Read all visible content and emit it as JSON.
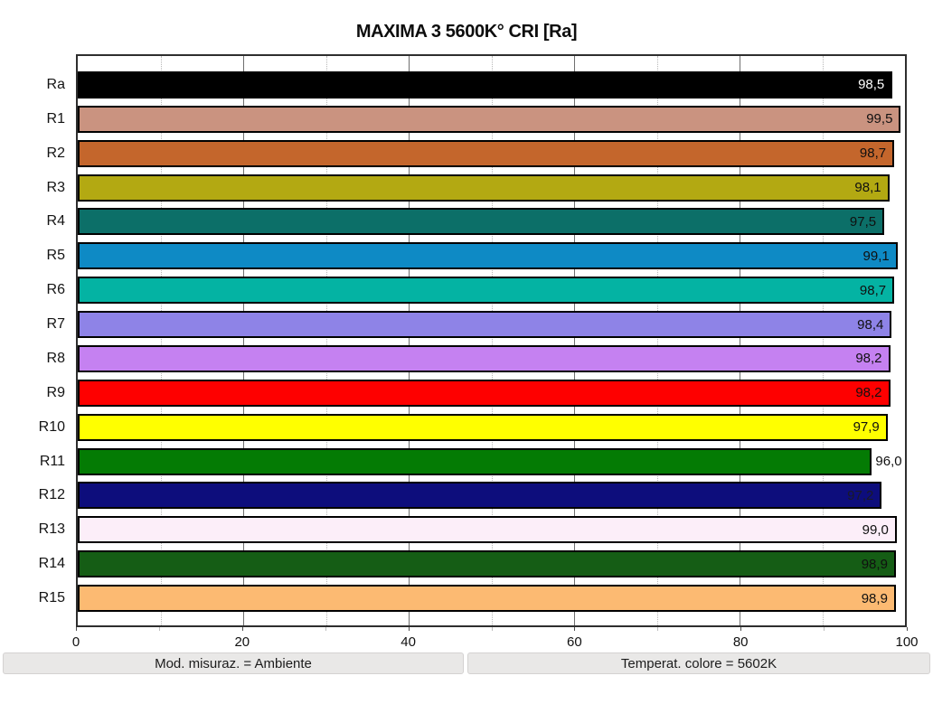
{
  "title": "MAXIMA 3 5600K° CRI [Ra]",
  "footer": {
    "left": "Mod. misuraz. = Ambiente",
    "right": "Temperat. colore = 5602K"
  },
  "chart_data": {
    "type": "bar",
    "orientation": "horizontal",
    "title": "MAXIMA 3 5600K° CRI [Ra]",
    "xlabel": "",
    "ylabel": "",
    "xlim": [
      0,
      100
    ],
    "x_ticks": [
      0,
      20,
      40,
      60,
      80,
      100
    ],
    "x_minor_ticks": [
      10,
      30,
      50,
      70,
      90
    ],
    "grid": "vertical, major solid / minor dotted",
    "legend": "none",
    "categories": [
      "Ra",
      "R1",
      "R2",
      "R3",
      "R4",
      "R5",
      "R6",
      "R7",
      "R8",
      "R9",
      "R10",
      "R11",
      "R12",
      "R13",
      "R14",
      "R15"
    ],
    "values": [
      98.5,
      99.5,
      98.7,
      98.1,
      97.5,
      99.1,
      98.7,
      98.4,
      98.2,
      98.2,
      97.9,
      96.0,
      97.2,
      99.0,
      98.9,
      98.9
    ],
    "bars": [
      {
        "category": "Ra",
        "value": 98.5,
        "label": "98,5",
        "color": "#000000",
        "label_color": "#ffffff",
        "label_outside": false
      },
      {
        "category": "R1",
        "value": 99.5,
        "label": "99,5",
        "color": "#ca9380",
        "label_color": "#101010",
        "label_outside": false
      },
      {
        "category": "R2",
        "value": 98.7,
        "label": "98,7",
        "color": "#c4662c",
        "label_color": "#101010",
        "label_outside": false
      },
      {
        "category": "R3",
        "value": 98.1,
        "label": "98,1",
        "color": "#b3a912",
        "label_color": "#101010",
        "label_outside": false
      },
      {
        "category": "R4",
        "value": 97.5,
        "label": "97,5",
        "color": "#0c6f68",
        "label_color": "#101010",
        "label_outside": false
      },
      {
        "category": "R5",
        "value": 99.1,
        "label": "99,1",
        "color": "#0e8ac5",
        "label_color": "#101010",
        "label_outside": false
      },
      {
        "category": "R6",
        "value": 98.7,
        "label": "98,7",
        "color": "#04b3a3",
        "label_color": "#101010",
        "label_outside": false
      },
      {
        "category": "R7",
        "value": 98.4,
        "label": "98,4",
        "color": "#8e83e7",
        "label_color": "#101010",
        "label_outside": false
      },
      {
        "category": "R8",
        "value": 98.2,
        "label": "98,2",
        "color": "#c581f1",
        "label_color": "#101010",
        "label_outside": false
      },
      {
        "category": "R9",
        "value": 98.2,
        "label": "98,2",
        "color": "#fe0000",
        "label_color": "#101010",
        "label_outside": false
      },
      {
        "category": "R10",
        "value": 97.9,
        "label": "97,9",
        "color": "#ffff00",
        "label_color": "#101010",
        "label_outside": false
      },
      {
        "category": "R11",
        "value": 96.0,
        "label": "96,0",
        "color": "#047b04",
        "label_color": "#101010",
        "label_outside": true
      },
      {
        "category": "R12",
        "value": 97.2,
        "label": "97,2",
        "color": "#0d0d7c",
        "label_color": "#1a1a28",
        "label_outside": false
      },
      {
        "category": "R13",
        "value": 99.0,
        "label": "99,0",
        "color": "#fceef9",
        "label_color": "#101010",
        "label_outside": false
      },
      {
        "category": "R14",
        "value": 98.9,
        "label": "98,9",
        "color": "#155d15",
        "label_color": "#101010",
        "label_outside": false
      },
      {
        "category": "R15",
        "value": 98.9,
        "label": "98,9",
        "color": "#fcba72",
        "label_color": "#101010",
        "label_outside": false
      }
    ]
  }
}
